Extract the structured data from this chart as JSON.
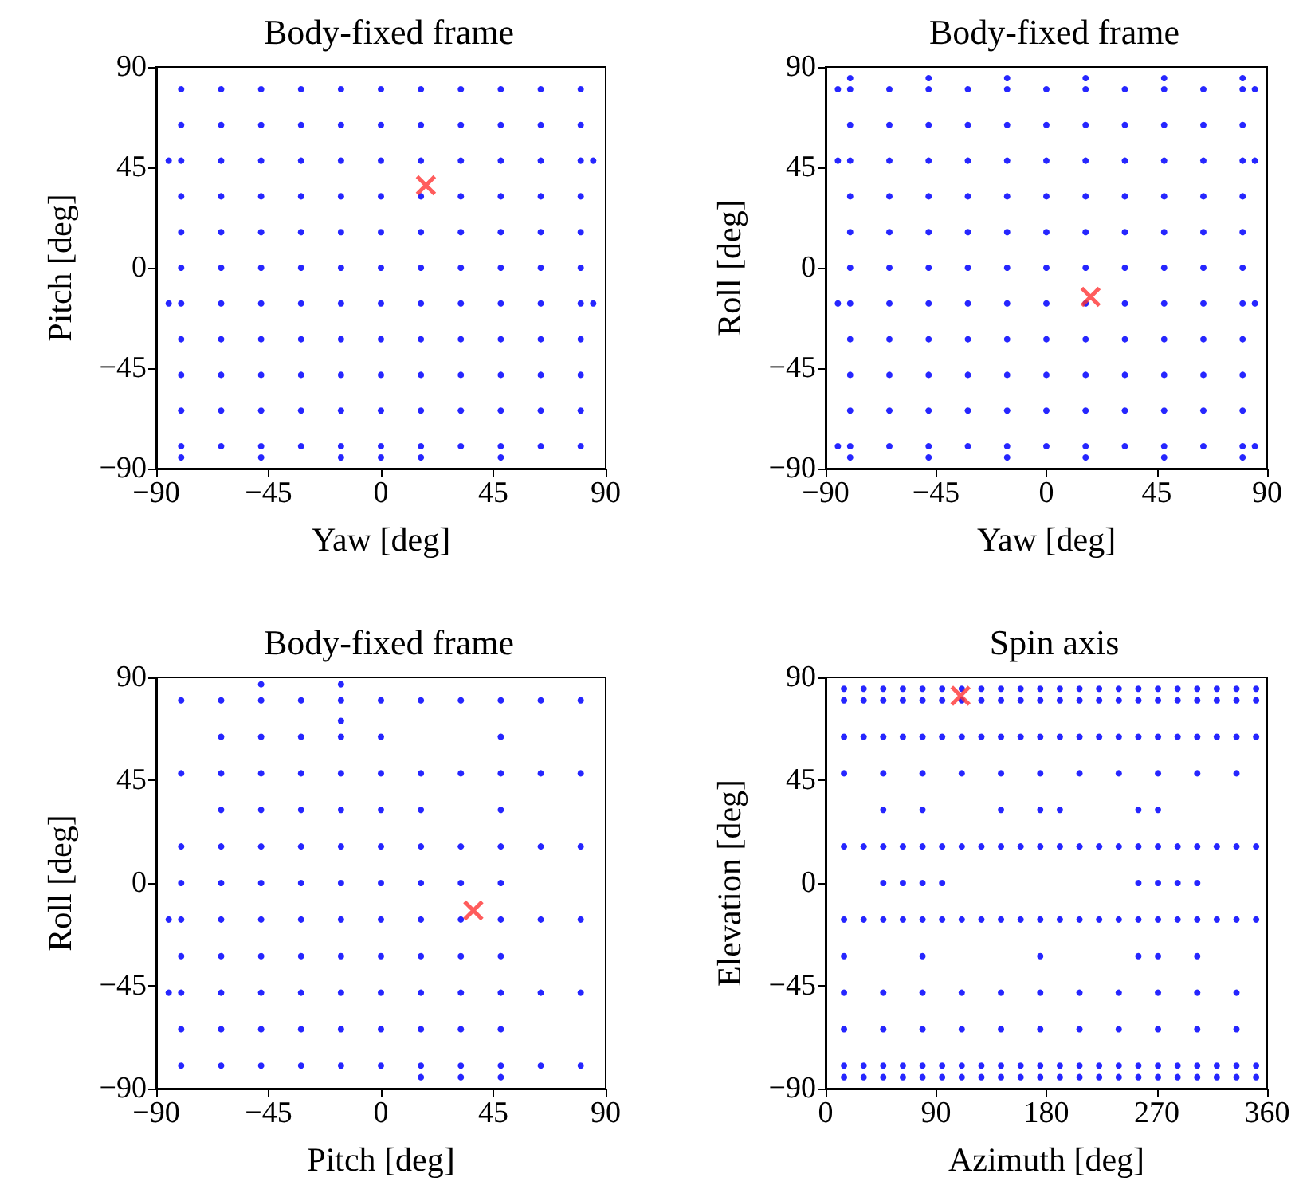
{
  "chart_data": [
    {
      "type": "scatter",
      "title": "Body-fixed frame",
      "xlabel": "Yaw [deg]",
      "ylabel": "Pitch [deg]",
      "xlim": [
        -90,
        90
      ],
      "ylim": [
        -90,
        90
      ],
      "xticks": [
        -90,
        -45,
        0,
        45,
        90
      ],
      "yticks": [
        -90,
        -45,
        0,
        45,
        90
      ],
      "marker": "circle",
      "series": [
        {
          "color": "#0000ff",
          "x": [
            -80,
            -64,
            -48,
            -32,
            -16,
            0,
            16,
            32,
            48,
            64,
            80,
            -80,
            -64,
            -48,
            -32,
            -16,
            0,
            16,
            32,
            48,
            64,
            80,
            -80,
            -64,
            -48,
            -32,
            -16,
            0,
            16,
            32,
            48,
            64,
            80,
            -80,
            -64,
            -48,
            -32,
            -16,
            0,
            16,
            32,
            48,
            64,
            80,
            -80,
            -64,
            -48,
            -32,
            -16,
            0,
            16,
            32,
            48,
            64,
            80,
            -80,
            -64,
            -48,
            -32,
            -16,
            0,
            16,
            32,
            48,
            64,
            80,
            -80,
            -64,
            -48,
            -32,
            -16,
            0,
            16,
            32,
            48,
            64,
            80,
            -80,
            -64,
            -48,
            -32,
            -16,
            0,
            16,
            32,
            48,
            64,
            80,
            -80,
            -64,
            -48,
            -32,
            -16,
            0,
            16,
            32,
            48,
            64,
            80,
            -80,
            -64,
            -48,
            -32,
            -16,
            0,
            16,
            32,
            48,
            64,
            80,
            -80,
            -64,
            -48,
            -32,
            -16,
            0,
            16,
            32,
            48,
            64,
            80,
            -85,
            85,
            -85,
            85,
            -80,
            -48,
            -16,
            0,
            16,
            48
          ],
          "values": [
            80,
            80,
            80,
            80,
            80,
            80,
            80,
            80,
            80,
            80,
            80,
            64,
            64,
            64,
            64,
            64,
            64,
            64,
            64,
            64,
            64,
            64,
            48,
            48,
            48,
            48,
            48,
            48,
            48,
            48,
            48,
            48,
            48,
            32,
            32,
            32,
            32,
            32,
            32,
            32,
            32,
            32,
            32,
            32,
            16,
            16,
            16,
            16,
            16,
            16,
            16,
            16,
            16,
            16,
            16,
            0,
            0,
            0,
            0,
            0,
            0,
            0,
            0,
            0,
            0,
            0,
            -16,
            -16,
            -16,
            -16,
            -16,
            -16,
            -16,
            -16,
            -16,
            -16,
            -16,
            -32,
            -32,
            -32,
            -32,
            -32,
            -32,
            -32,
            -32,
            -32,
            -32,
            -32,
            -48,
            -48,
            -48,
            -48,
            -48,
            -48,
            -48,
            -48,
            -48,
            -48,
            -48,
            -64,
            -64,
            -64,
            -64,
            -64,
            -64,
            -64,
            -64,
            -64,
            -64,
            -64,
            -80,
            -80,
            -80,
            -80,
            -80,
            -80,
            -80,
            -80,
            -80,
            -80,
            -80,
            48,
            48,
            -16,
            -16,
            -85,
            -85,
            -85,
            -85,
            -85,
            -85
          ]
        },
        {
          "marker": "cross",
          "color": "#ff3333",
          "x": [
            18
          ],
          "values": [
            37
          ]
        }
      ]
    },
    {
      "type": "scatter",
      "title": "Body-fixed frame",
      "xlabel": "Yaw [deg]",
      "ylabel": "Roll [deg]",
      "xlim": [
        -90,
        90
      ],
      "ylim": [
        -90,
        90
      ],
      "xticks": [
        -90,
        -45,
        0,
        45,
        90
      ],
      "yticks": [
        -90,
        -45,
        0,
        45,
        90
      ],
      "marker": "circle",
      "series": [
        {
          "color": "#0000ff",
          "x": [
            -80,
            -64,
            -48,
            -32,
            -16,
            0,
            16,
            32,
            48,
            64,
            80,
            -80,
            -64,
            -48,
            -32,
            -16,
            0,
            16,
            32,
            48,
            64,
            80,
            -80,
            -64,
            -48,
            -32,
            -16,
            0,
            16,
            32,
            48,
            64,
            80,
            -80,
            -64,
            -48,
            -32,
            -16,
            0,
            16,
            32,
            48,
            64,
            80,
            -80,
            -64,
            -48,
            -32,
            -16,
            0,
            16,
            32,
            48,
            64,
            80,
            -80,
            -64,
            -48,
            -32,
            -16,
            0,
            16,
            32,
            48,
            64,
            80,
            -80,
            -64,
            -48,
            -32,
            -16,
            0,
            16,
            32,
            48,
            64,
            80,
            -80,
            -64,
            -48,
            -32,
            -16,
            0,
            16,
            32,
            48,
            64,
            80,
            -80,
            -64,
            -48,
            -32,
            -16,
            0,
            16,
            32,
            48,
            64,
            80,
            -80,
            -64,
            -48,
            -32,
            -16,
            0,
            16,
            32,
            48,
            64,
            80,
            -80,
            -64,
            -48,
            -32,
            -16,
            0,
            16,
            32,
            48,
            64,
            80,
            -80,
            -48,
            -16,
            16,
            48,
            80,
            -80,
            -48,
            -16,
            16,
            48,
            80,
            -85,
            85,
            -85,
            85,
            -85,
            85,
            -85,
            85
          ],
          "values": [
            80,
            80,
            80,
            80,
            80,
            80,
            80,
            80,
            80,
            80,
            80,
            64,
            64,
            64,
            64,
            64,
            64,
            64,
            64,
            64,
            64,
            64,
            48,
            48,
            48,
            48,
            48,
            48,
            48,
            48,
            48,
            48,
            48,
            32,
            32,
            32,
            32,
            32,
            32,
            32,
            32,
            32,
            32,
            32,
            16,
            16,
            16,
            16,
            16,
            16,
            16,
            16,
            16,
            16,
            16,
            0,
            0,
            0,
            0,
            0,
            0,
            0,
            0,
            0,
            0,
            0,
            -16,
            -16,
            -16,
            -16,
            -16,
            -16,
            -16,
            -16,
            -16,
            -16,
            -16,
            -32,
            -32,
            -32,
            -32,
            -32,
            -32,
            -32,
            -32,
            -32,
            -32,
            -32,
            -48,
            -48,
            -48,
            -48,
            -48,
            -48,
            -48,
            -48,
            -48,
            -48,
            -48,
            -64,
            -64,
            -64,
            -64,
            -64,
            -64,
            -64,
            -64,
            -64,
            -64,
            -64,
            -80,
            -80,
            -80,
            -80,
            -80,
            -80,
            -80,
            -80,
            -80,
            -80,
            -80,
            85,
            85,
            85,
            85,
            85,
            85,
            -85,
            -85,
            -85,
            -85,
            -85,
            -85,
            80,
            80,
            48,
            48,
            -16,
            -16,
            -80,
            -80
          ]
        },
        {
          "marker": "cross",
          "color": "#ff3333",
          "x": [
            18
          ],
          "values": [
            -13
          ]
        }
      ]
    },
    {
      "type": "scatter",
      "title": "Body-fixed frame",
      "xlabel": "Pitch [deg]",
      "ylabel": "Roll [deg]",
      "xlim": [
        -90,
        90
      ],
      "ylim": [
        -90,
        90
      ],
      "xticks": [
        -90,
        -45,
        0,
        45,
        90
      ],
      "yticks": [
        -90,
        -45,
        0,
        45,
        90
      ],
      "marker": "circle",
      "series": [
        {
          "color": "#0000ff",
          "x": [
            -80,
            -64,
            -48,
            -32,
            -16,
            0,
            16,
            32,
            48,
            64,
            80,
            -64,
            -48,
            -32,
            -16,
            0,
            48,
            -80,
            -64,
            -48,
            -32,
            -16,
            0,
            16,
            32,
            48,
            64,
            80,
            -64,
            -48,
            -32,
            -16,
            0,
            16,
            48,
            -80,
            -64,
            -48,
            -32,
            -16,
            0,
            16,
            32,
            48,
            64,
            80,
            -80,
            -64,
            -48,
            -32,
            -16,
            0,
            16,
            32,
            48,
            -85,
            -80,
            -64,
            -48,
            -32,
            -16,
            0,
            16,
            32,
            48,
            64,
            80,
            -80,
            -64,
            -48,
            -32,
            -16,
            0,
            16,
            32,
            48,
            -85,
            -80,
            -64,
            -48,
            -32,
            -16,
            0,
            16,
            32,
            48,
            64,
            80,
            -80,
            -64,
            -48,
            -32,
            -16,
            0,
            16,
            32,
            48,
            -80,
            -64,
            -48,
            -32,
            -16,
            0,
            16,
            32,
            48,
            64,
            80,
            -16,
            -48,
            -16,
            16,
            32,
            48
          ],
          "values": [
            80,
            80,
            80,
            80,
            80,
            80,
            80,
            80,
            80,
            80,
            80,
            64,
            64,
            64,
            64,
            64,
            64,
            48,
            48,
            48,
            48,
            48,
            48,
            48,
            48,
            48,
            48,
            48,
            32,
            32,
            32,
            32,
            32,
            32,
            32,
            16,
            16,
            16,
            16,
            16,
            16,
            16,
            16,
            16,
            16,
            16,
            0,
            0,
            0,
            0,
            0,
            0,
            0,
            0,
            0,
            -16,
            -16,
            -16,
            -16,
            -16,
            -16,
            -16,
            -16,
            -16,
            -16,
            -16,
            -16,
            -32,
            -32,
            -32,
            -32,
            -32,
            -32,
            -32,
            -32,
            -32,
            -48,
            -48,
            -48,
            -48,
            -48,
            -48,
            -48,
            -48,
            -48,
            -48,
            -48,
            -48,
            -64,
            -64,
            -64,
            -64,
            -64,
            -64,
            -64,
            -64,
            -64,
            -80,
            -80,
            -80,
            -80,
            -80,
            -80,
            -80,
            -80,
            -80,
            -80,
            -80,
            71,
            87,
            87,
            -85,
            -85,
            -85
          ]
        },
        {
          "marker": "cross",
          "color": "#ff3333",
          "x": [
            37
          ],
          "values": [
            -12
          ]
        }
      ]
    },
    {
      "type": "scatter",
      "title": "Spin axis",
      "xlabel": "Azimuth [deg]",
      "ylabel": "Elevation [deg]",
      "xlim": [
        0,
        360
      ],
      "ylim": [
        -90,
        90
      ],
      "xticks": [
        0,
        90,
        180,
        270,
        360
      ],
      "yticks": [
        -90,
        -45,
        0,
        45,
        90
      ],
      "marker": "circle",
      "series": [
        {
          "color": "#0000ff",
          "x": [
            15,
            31,
            47,
            63,
            79,
            95,
            111,
            127,
            143,
            159,
            175,
            191,
            207,
            223,
            239,
            255,
            271,
            287,
            303,
            319,
            335,
            351,
            15,
            31,
            47,
            63,
            79,
            95,
            111,
            127,
            143,
            159,
            175,
            191,
            207,
            223,
            239,
            255,
            271,
            287,
            303,
            319,
            335,
            351,
            15,
            31,
            47,
            63,
            79,
            95,
            111,
            127,
            143,
            159,
            175,
            191,
            207,
            223,
            239,
            255,
            271,
            287,
            303,
            319,
            335,
            351,
            15,
            47,
            79,
            111,
            143,
            175,
            207,
            239,
            271,
            303,
            335,
            47,
            79,
            143,
            175,
            191,
            255,
            271,
            15,
            31,
            47,
            63,
            79,
            95,
            111,
            127,
            143,
            159,
            175,
            191,
            207,
            223,
            239,
            255,
            271,
            287,
            303,
            319,
            335,
            351,
            47,
            63,
            79,
            95,
            255,
            271,
            287,
            303,
            15,
            31,
            47,
            63,
            79,
            95,
            111,
            127,
            143,
            159,
            175,
            191,
            207,
            223,
            239,
            255,
            271,
            287,
            303,
            319,
            335,
            351,
            15,
            79,
            175,
            255,
            271,
            303,
            15,
            47,
            79,
            111,
            143,
            175,
            207,
            239,
            271,
            303,
            335,
            15,
            47,
            79,
            111,
            143,
            175,
            207,
            239,
            271,
            303,
            335,
            15,
            31,
            47,
            63,
            79,
            95,
            111,
            127,
            143,
            159,
            175,
            191,
            207,
            223,
            239,
            255,
            271,
            287,
            303,
            319,
            335,
            351,
            15,
            31,
            47,
            63,
            79,
            95,
            111,
            127,
            143,
            159,
            175,
            191,
            207,
            223,
            239,
            255,
            271,
            287,
            303,
            319,
            335,
            351
          ],
          "values": [
            85,
            85,
            85,
            85,
            85,
            85,
            85,
            85,
            85,
            85,
            85,
            85,
            85,
            85,
            85,
            85,
            85,
            85,
            85,
            85,
            85,
            85,
            80,
            80,
            80,
            80,
            80,
            80,
            80,
            80,
            80,
            80,
            80,
            80,
            80,
            80,
            80,
            80,
            80,
            80,
            80,
            80,
            80,
            80,
            64,
            64,
            64,
            64,
            64,
            64,
            64,
            64,
            64,
            64,
            64,
            64,
            64,
            64,
            64,
            64,
            64,
            64,
            64,
            64,
            64,
            64,
            48,
            48,
            48,
            48,
            48,
            48,
            48,
            48,
            48,
            48,
            48,
            32,
            32,
            32,
            32,
            32,
            32,
            32,
            16,
            16,
            16,
            16,
            16,
            16,
            16,
            16,
            16,
            16,
            16,
            16,
            16,
            16,
            16,
            16,
            16,
            16,
            16,
            16,
            16,
            16,
            0,
            0,
            0,
            0,
            0,
            0,
            0,
            0,
            -16,
            -16,
            -16,
            -16,
            -16,
            -16,
            -16,
            -16,
            -16,
            -16,
            -16,
            -16,
            -16,
            -16,
            -16,
            -16,
            -16,
            -16,
            -16,
            -16,
            -16,
            -16,
            -32,
            -32,
            -32,
            -32,
            -32,
            -32,
            -48,
            -48,
            -48,
            -48,
            -48,
            -48,
            -48,
            -48,
            -48,
            -48,
            -48,
            -64,
            -64,
            -64,
            -64,
            -64,
            -64,
            -64,
            -64,
            -64,
            -64,
            -64,
            -80,
            -80,
            -80,
            -80,
            -80,
            -80,
            -80,
            -80,
            -80,
            -80,
            -80,
            -80,
            -80,
            -80,
            -80,
            -80,
            -80,
            -80,
            -80,
            -80,
            -80,
            -80,
            -85,
            -85,
            -85,
            -85,
            -85,
            -85,
            -85,
            -85,
            -85,
            -85,
            -85,
            -85,
            -85,
            -85,
            -85,
            -85,
            -85,
            -85,
            -85,
            -85,
            -85,
            -85
          ]
        },
        {
          "marker": "cross",
          "color": "#ff3333",
          "x": [
            110
          ],
          "values": [
            82
          ]
        }
      ]
    }
  ]
}
